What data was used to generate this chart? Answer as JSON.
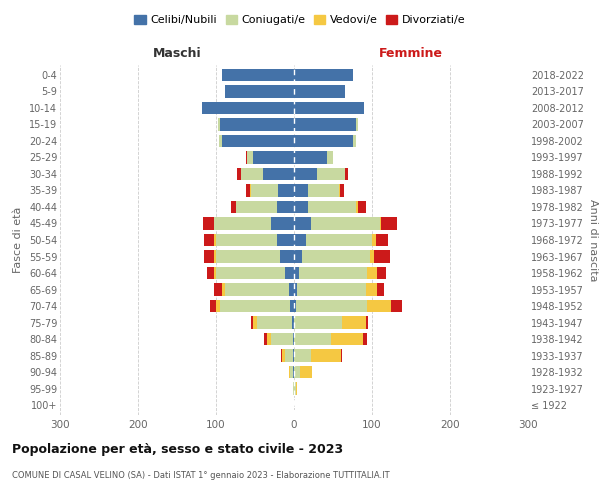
{
  "age_groups": [
    "100+",
    "95-99",
    "90-94",
    "85-89",
    "80-84",
    "75-79",
    "70-74",
    "65-69",
    "60-64",
    "55-59",
    "50-54",
    "45-49",
    "40-44",
    "35-39",
    "30-34",
    "25-29",
    "20-24",
    "15-19",
    "10-14",
    "5-9",
    "0-4"
  ],
  "birth_years": [
    "≤ 1922",
    "1923-1927",
    "1928-1932",
    "1933-1937",
    "1938-1942",
    "1943-1947",
    "1948-1952",
    "1953-1957",
    "1958-1962",
    "1963-1967",
    "1968-1972",
    "1973-1977",
    "1978-1982",
    "1983-1987",
    "1988-1992",
    "1993-1997",
    "1998-2002",
    "2003-2007",
    "2008-2012",
    "2013-2017",
    "2018-2022"
  ],
  "maschi": {
    "celibi": [
      0,
      0,
      1,
      1,
      1,
      2,
      5,
      7,
      12,
      18,
      22,
      30,
      22,
      20,
      40,
      52,
      92,
      95,
      118,
      88,
      92
    ],
    "coniugati": [
      0,
      1,
      4,
      10,
      28,
      45,
      90,
      82,
      88,
      82,
      78,
      72,
      52,
      35,
      28,
      8,
      4,
      2,
      0,
      0,
      0
    ],
    "vedovi": [
      0,
      0,
      2,
      4,
      5,
      5,
      5,
      3,
      2,
      2,
      2,
      1,
      1,
      1,
      0,
      0,
      0,
      0,
      0,
      0,
      0
    ],
    "divorziati": [
      0,
      0,
      0,
      2,
      4,
      3,
      8,
      10,
      10,
      14,
      14,
      14,
      6,
      5,
      5,
      2,
      0,
      0,
      0,
      0,
      0
    ]
  },
  "femmine": {
    "nubili": [
      0,
      0,
      0,
      0,
      0,
      0,
      2,
      4,
      6,
      10,
      15,
      22,
      18,
      18,
      30,
      42,
      75,
      80,
      90,
      65,
      75
    ],
    "coniugate": [
      0,
      2,
      8,
      22,
      48,
      62,
      92,
      88,
      88,
      88,
      85,
      88,
      62,
      40,
      35,
      8,
      4,
      2,
      0,
      0,
      0
    ],
    "vedove": [
      0,
      2,
      15,
      38,
      40,
      30,
      30,
      14,
      12,
      5,
      5,
      2,
      2,
      1,
      1,
      0,
      0,
      0,
      0,
      0,
      0
    ],
    "divorziate": [
      0,
      0,
      0,
      2,
      5,
      3,
      14,
      10,
      12,
      20,
      16,
      20,
      10,
      5,
      3,
      0,
      0,
      0,
      0,
      0,
      0
    ]
  },
  "colors": {
    "celibi": "#4472a8",
    "coniugati": "#c8d9a0",
    "vedovi": "#f5c842",
    "divorziati": "#cc1a1a"
  },
  "title": "Popolazione per età, sesso e stato civile - 2023",
  "subtitle": "COMUNE DI CASAL VELINO (SA) - Dati ISTAT 1° gennaio 2023 - Elaborazione TUTTITALIA.IT",
  "xlabel_left": "Maschi",
  "xlabel_right": "Femmine",
  "ylabel_left": "Fasce di età",
  "ylabel_right": "Anni di nascita",
  "xlim": 300,
  "legend_labels": [
    "Celibi/Nubili",
    "Coniugati/e",
    "Vedovi/e",
    "Divorziati/e"
  ],
  "background_color": "#ffffff",
  "bar_height": 0.75
}
